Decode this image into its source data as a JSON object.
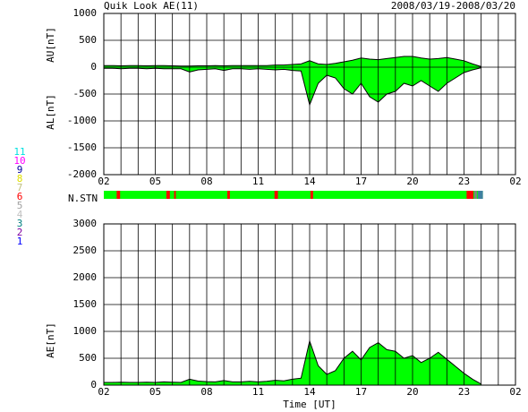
{
  "chart_data": [
    {
      "type": "area",
      "title": "Quik Look AE(11)",
      "date_range": "2008/03/19-2008/03/20",
      "ylabels": [
        "AU[nT]",
        "AL[nT]"
      ],
      "x": [
        0,
        0.5,
        1,
        1.5,
        2,
        2.5,
        3,
        3.5,
        4,
        4.5,
        5,
        5.5,
        6,
        6.5,
        7,
        7.5,
        8,
        8.5,
        9,
        9.5,
        10,
        10.5,
        11,
        11.5,
        12,
        12.5,
        13,
        13.5,
        14,
        14.5,
        15,
        15.5,
        16,
        16.5,
        17,
        17.5,
        18,
        18.5,
        19,
        19.5,
        20,
        20.5,
        21,
        21.5,
        22
      ],
      "series": [
        {
          "name": "AU",
          "color": "#00ff00",
          "values": [
            30,
            30,
            25,
            30,
            30,
            25,
            30,
            30,
            25,
            20,
            20,
            25,
            25,
            30,
            25,
            30,
            30,
            30,
            30,
            30,
            40,
            40,
            50,
            60,
            120,
            60,
            50,
            70,
            100,
            130,
            170,
            150,
            140,
            160,
            180,
            200,
            200,
            170,
            150,
            160,
            180,
            150,
            120,
            60,
            10
          ]
        },
        {
          "name": "AL",
          "color": "#00ff00",
          "values": [
            -20,
            -20,
            -30,
            -20,
            -20,
            -30,
            -20,
            -30,
            -30,
            -30,
            -90,
            -50,
            -40,
            -30,
            -60,
            -30,
            -30,
            -40,
            -30,
            -40,
            -50,
            -40,
            -60,
            -70,
            -700,
            -300,
            -150,
            -200,
            -400,
            -500,
            -300,
            -550,
            -650,
            -500,
            -450,
            -300,
            -350,
            -250,
            -350,
            -450,
            -300,
            -200,
            -100,
            -50,
            -10
          ]
        }
      ],
      "xlim": [
        0,
        24
      ],
      "xticks": [
        {
          "value": 0,
          "label": "02"
        },
        {
          "value": 3,
          "label": "05"
        },
        {
          "value": 6,
          "label": "08"
        },
        {
          "value": 9,
          "label": "11"
        },
        {
          "value": 12,
          "label": "14"
        },
        {
          "value": 15,
          "label": "17"
        },
        {
          "value": 18,
          "label": "20"
        },
        {
          "value": 21,
          "label": "23"
        },
        {
          "value": 24,
          "label": "02"
        }
      ],
      "xgrid": [
        0,
        1,
        2,
        3,
        4,
        5,
        6,
        7,
        8,
        9,
        10,
        11,
        12,
        13,
        14,
        15,
        16,
        17,
        18,
        19,
        20,
        21,
        22,
        23,
        24
      ],
      "ylim": [
        -2000,
        1000
      ],
      "yticks": [
        1000,
        500,
        0,
        -500,
        -1000,
        -1500,
        -2000
      ],
      "grid": true
    },
    {
      "type": "timeline",
      "label": "N.STN",
      "xlim": [
        0,
        24
      ],
      "segments": [
        {
          "start": 0,
          "end": 22.1,
          "color": "#00ff00"
        },
        {
          "start": 0.75,
          "end": 0.95,
          "color": "#ff0000"
        },
        {
          "start": 3.65,
          "end": 3.85,
          "color": "#ff0000"
        },
        {
          "start": 4.1,
          "end": 4.2,
          "color": "#ff0000"
        },
        {
          "start": 7.2,
          "end": 7.35,
          "color": "#ff0000"
        },
        {
          "start": 9.95,
          "end": 10.15,
          "color": "#ff0000"
        },
        {
          "start": 12.05,
          "end": 12.2,
          "color": "#ff0000"
        },
        {
          "start": 21.15,
          "end": 21.55,
          "color": "#ff0000"
        },
        {
          "start": 21.6,
          "end": 21.75,
          "color": "#808080"
        },
        {
          "start": 21.8,
          "end": 22.1,
          "color": "#4080a0"
        }
      ],
      "levels": [
        11,
        10,
        9,
        8,
        7,
        6,
        5,
        4,
        3,
        2,
        1
      ],
      "level_colors": [
        "#00e0e0",
        "#ff00ff",
        "#0000a0",
        "#e0e000",
        "#c0c080",
        "#ff0000",
        "#a0a0a0",
        "#c0c0c0",
        "#008080",
        "#8000a0",
        "#0000ff"
      ]
    },
    {
      "type": "area",
      "ylabels": [
        "AE[nT]"
      ],
      "xlabel": "Time [UT]",
      "x": [
        0,
        0.5,
        1,
        1.5,
        2,
        2.5,
        3,
        3.5,
        4,
        4.5,
        5,
        5.5,
        6,
        6.5,
        7,
        7.5,
        8,
        8.5,
        9,
        9.5,
        10,
        10.5,
        11,
        11.5,
        12,
        12.5,
        13,
        13.5,
        14,
        14.5,
        15,
        15.5,
        16,
        16.5,
        17,
        17.5,
        18,
        18.5,
        19,
        19.5,
        20,
        20.5,
        21,
        21.5,
        22
      ],
      "series": [
        {
          "name": "AE",
          "color": "#00ff00",
          "values": [
            50,
            50,
            55,
            50,
            50,
            55,
            50,
            60,
            55,
            50,
            110,
            75,
            65,
            60,
            85,
            60,
            60,
            70,
            60,
            70,
            90,
            80,
            110,
            130,
            820,
            360,
            200,
            270,
            500,
            630,
            470,
            700,
            790,
            660,
            630,
            500,
            550,
            420,
            500,
            610,
            480,
            350,
            220,
            110,
            20
          ]
        }
      ],
      "xlim": [
        0,
        24
      ],
      "xticks": [
        {
          "value": 0,
          "label": "02"
        },
        {
          "value": 3,
          "label": "05"
        },
        {
          "value": 6,
          "label": "08"
        },
        {
          "value": 9,
          "label": "11"
        },
        {
          "value": 12,
          "label": "14"
        },
        {
          "value": 15,
          "label": "17"
        },
        {
          "value": 18,
          "label": "20"
        },
        {
          "value": 21,
          "label": "23"
        },
        {
          "value": 24,
          "label": "02"
        }
      ],
      "xgrid": [
        0,
        1,
        2,
        3,
        4,
        5,
        6,
        7,
        8,
        9,
        10,
        11,
        12,
        13,
        14,
        15,
        16,
        17,
        18,
        19,
        20,
        21,
        22,
        23,
        24
      ],
      "ylim": [
        0,
        3000
      ],
      "yticks": [
        0,
        500,
        1000,
        1500,
        2000,
        2500,
        3000
      ],
      "grid": true
    }
  ]
}
